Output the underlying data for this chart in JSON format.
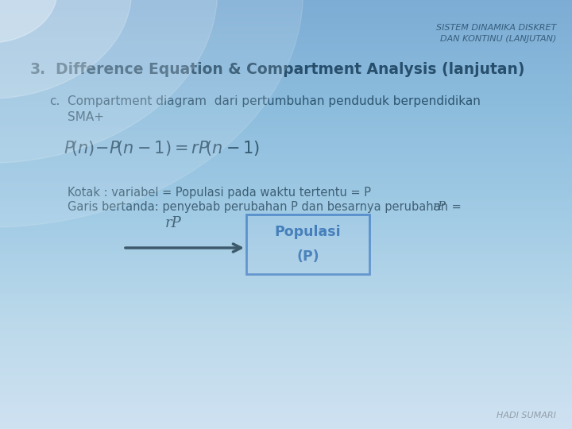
{
  "title_line1": "SISTEM DINAMIKA DISKRET",
  "title_line2": "DAN KONTINU (LANJUTAN)",
  "heading_num": "3.",
  "heading_text": "Difference Equation & Compartment Analysis (lanjutan)",
  "sub_c_label": "c.",
  "sub_c_text1": "Compartment diagram  dari pertumbuhan penduduk berpendidikan",
  "sub_c_text2": "SMA+",
  "kotak_line": "Kotak : variabel = Populasi pada waktu tertentu = P",
  "garis_line_main": "Garis bertanda: penyebab perubahan P dan besarnya perubahan = ",
  "garis_line_italic": "rP",
  "arrow_label": "rP",
  "box_label_line1": "Populasi",
  "box_label_line2": "(P)",
  "footer": "HADI SUMARI",
  "bg_top_color": "#e8f0f8",
  "bg_bottom_color": "#c5d8ee",
  "title_color": "#444444",
  "text_color": "#1a1a1a",
  "box_edge_color": "#4472c4",
  "box_face_color": "#dce8f5",
  "box_text_color": "#1a4fa0"
}
